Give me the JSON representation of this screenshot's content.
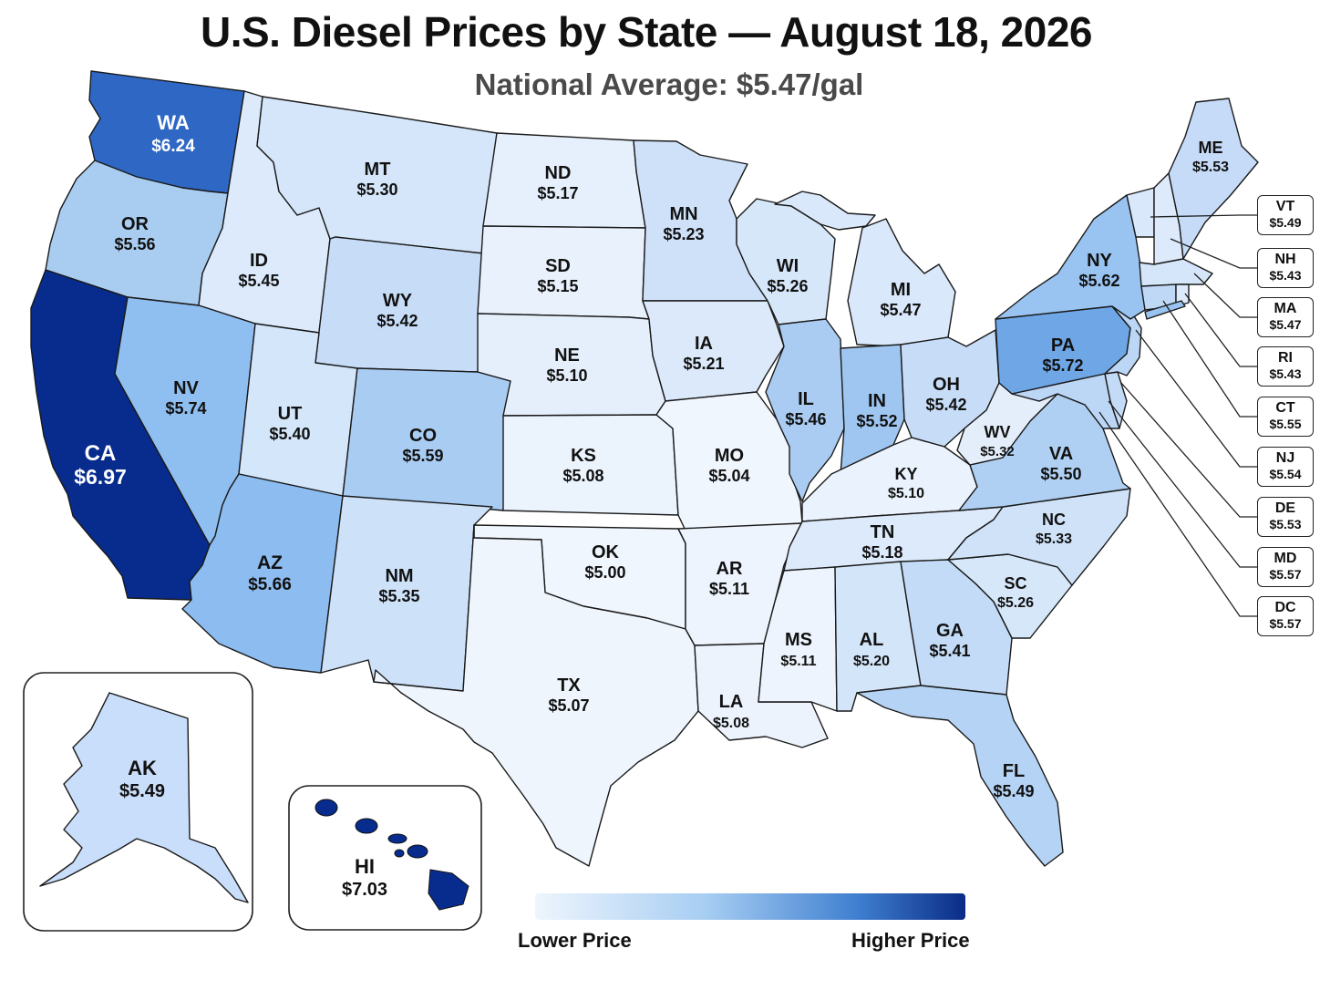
{
  "title": "U.S. Diesel Prices by State — August 18, 2026",
  "subtitle": "National Average: $5.47/gal",
  "legend": {
    "low_label": "Lower Price",
    "high_label": "Higher Price",
    "colors": [
      "#eef5fd",
      "#a6cdf2",
      "#3f7fd0",
      "#0a2c86"
    ]
  },
  "states": {
    "WA": {
      "abbr": "WA",
      "price": "$6.24"
    },
    "OR": {
      "abbr": "OR",
      "price": "$5.56"
    },
    "CA": {
      "abbr": "CA",
      "price": "$6.97"
    },
    "ID": {
      "abbr": "ID",
      "price": "$5.45"
    },
    "NV": {
      "abbr": "NV",
      "price": "$5.74"
    },
    "MT": {
      "abbr": "MT",
      "price": "$5.30"
    },
    "WY": {
      "abbr": "WY",
      "price": "$5.42"
    },
    "UT": {
      "abbr": "UT",
      "price": "$5.40"
    },
    "AZ": {
      "abbr": "AZ",
      "price": "$5.66"
    },
    "CO": {
      "abbr": "CO",
      "price": "$5.59"
    },
    "NM": {
      "abbr": "NM",
      "price": "$5.35"
    },
    "ND": {
      "abbr": "ND",
      "price": "$5.17"
    },
    "SD": {
      "abbr": "SD",
      "price": "$5.15"
    },
    "NE": {
      "abbr": "NE",
      "price": "$5.10"
    },
    "KS": {
      "abbr": "KS",
      "price": "$5.08"
    },
    "OK": {
      "abbr": "OK",
      "price": "$5.00"
    },
    "TX": {
      "abbr": "TX",
      "price": "$5.07"
    },
    "MN": {
      "abbr": "MN",
      "price": "$5.23"
    },
    "IA": {
      "abbr": "IA",
      "price": "$5.21"
    },
    "MO": {
      "abbr": "MO",
      "price": "$5.04"
    },
    "AR": {
      "abbr": "AR",
      "price": "$5.11"
    },
    "LA": {
      "abbr": "LA",
      "price": "$5.08"
    },
    "WI": {
      "abbr": "WI",
      "price": "$5.26"
    },
    "IL": {
      "abbr": "IL",
      "price": "$5.46"
    },
    "MI": {
      "abbr": "MI",
      "price": "$5.47"
    },
    "IN": {
      "abbr": "IN",
      "price": "$5.52"
    },
    "OH": {
      "abbr": "OH",
      "price": "$5.42"
    },
    "KY": {
      "abbr": "KY",
      "price": "$5.10"
    },
    "TN": {
      "abbr": "TN",
      "price": "$5.18"
    },
    "MS": {
      "abbr": "MS",
      "price": "$5.11"
    },
    "AL": {
      "abbr": "AL",
      "price": "$5.20"
    },
    "GA": {
      "abbr": "GA",
      "price": "$5.41"
    },
    "FL": {
      "abbr": "FL",
      "price": "$5.49"
    },
    "SC": {
      "abbr": "SC",
      "price": "$5.26"
    },
    "NC": {
      "abbr": "NC",
      "price": "$5.33"
    },
    "VA": {
      "abbr": "VA",
      "price": "$5.50"
    },
    "WV": {
      "abbr": "WV",
      "price": "$5.32"
    },
    "PA": {
      "abbr": "PA",
      "price": "$5.72"
    },
    "NY": {
      "abbr": "NY",
      "price": "$5.62"
    },
    "ME": {
      "abbr": "ME",
      "price": "$5.53"
    },
    "AK": {
      "abbr": "AK",
      "price": "$5.49"
    },
    "HI": {
      "abbr": "HI",
      "price": "$7.03"
    }
  },
  "callouts": [
    {
      "abbr": "VT",
      "price": "$5.49"
    },
    {
      "abbr": "NH",
      "price": "$5.43"
    },
    {
      "abbr": "MA",
      "price": "$5.47"
    },
    {
      "abbr": "RI",
      "price": "$5.43"
    },
    {
      "abbr": "CT",
      "price": "$5.55"
    },
    {
      "abbr": "NJ",
      "price": "$5.54"
    },
    {
      "abbr": "DE",
      "price": "$5.53"
    },
    {
      "abbr": "MD",
      "price": "$5.57"
    },
    {
      "abbr": "DC",
      "price": "$5.57"
    }
  ]
}
